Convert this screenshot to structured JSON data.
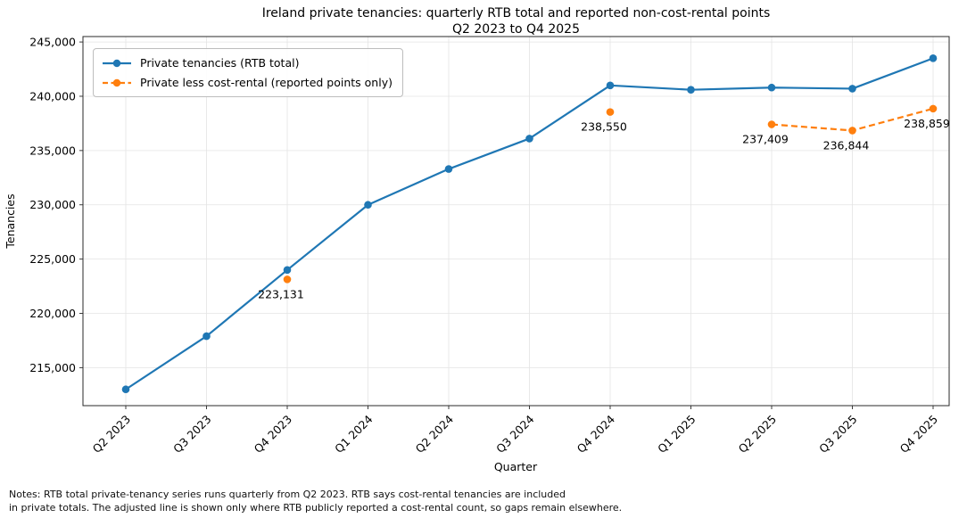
{
  "title": {
    "line1": "Ireland private tenancies: quarterly RTB total and reported non-cost-rental points",
    "line2": "Q2 2023 to Q4 2025"
  },
  "notes": {
    "line1": "Notes: RTB total private-tenancy series runs quarterly from Q2 2023. RTB says cost-rental tenancies are included",
    "line2": "in private totals. The adjusted line is shown only where RTB publicly reported a cost-rental count, so gaps remain elsewhere."
  },
  "chart_data": {
    "type": "line",
    "title": "Ireland private tenancies: quarterly RTB total and reported non-cost-rental points\nQ2 2023 to Q4 2025",
    "xlabel": "Quarter",
    "ylabel": "Tenancies",
    "categories": [
      "Q2 2023",
      "Q3 2023",
      "Q4 2023",
      "Q1 2024",
      "Q2 2024",
      "Q3 2024",
      "Q4 2024",
      "Q1 2025",
      "Q2 2025",
      "Q3 2025",
      "Q4 2025"
    ],
    "ylim": [
      211500,
      245500
    ],
    "yticks": [
      215000,
      220000,
      225000,
      230000,
      235000,
      240000,
      245000
    ],
    "grid": true,
    "legend_position": "upper-left",
    "series": [
      {
        "name": "Private tenancies (RTB total)",
        "color": "#1f77b4",
        "style": "solid",
        "values": [
          213000,
          217900,
          224000,
          230000,
          233300,
          236100,
          241000,
          240600,
          240800,
          240700,
          243500
        ]
      },
      {
        "name": "Private less cost-rental (reported points only)",
        "color": "#ff7f0e",
        "style": "dashed",
        "values": [
          null,
          null,
          223131,
          null,
          null,
          null,
          238550,
          null,
          237409,
          236844,
          238859
        ],
        "labels": [
          null,
          null,
          "223,131",
          null,
          null,
          null,
          "238,550",
          null,
          "237,409",
          "236,844",
          "238,859"
        ]
      }
    ]
  }
}
